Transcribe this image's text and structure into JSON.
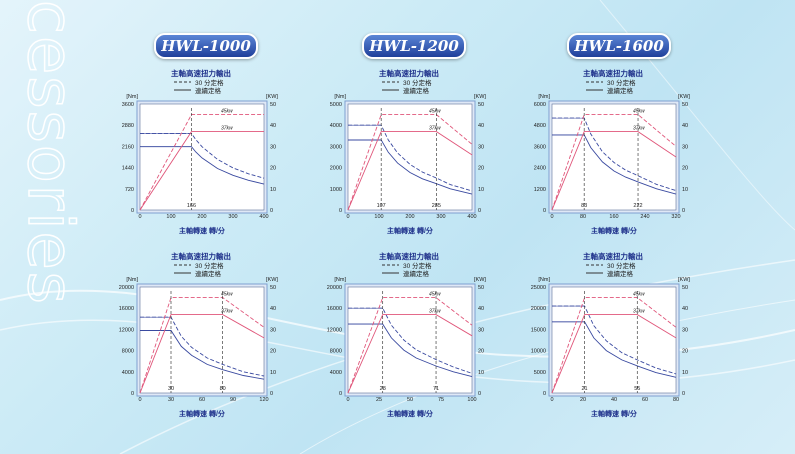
{
  "sidebar_text": "cessories",
  "models": [
    "HWL-1000",
    "HWL-1200",
    "HWL-1600"
  ],
  "colors": {
    "power_line": "#e0567a",
    "torque_line": "#3a4aa0",
    "plot_bg": "#ffffff",
    "frame": "#7f9fd0"
  },
  "chart_data": [
    {
      "type": "line",
      "title": "主軸高速扭力輸出",
      "legend": [
        "30 分定格",
        "連續定格"
      ],
      "xlabel": "主軸轉速 轉/分",
      "ylabel": "[Nm]",
      "ylabel_right": "[KW]",
      "xlim": [
        0,
        400
      ],
      "ylim": [
        0,
        3600
      ],
      "y2lim": [
        0,
        50
      ],
      "x_ticks": [
        "0",
        "100",
        "200",
        "300",
        "400"
      ],
      "y_ticks": [
        "0",
        "720",
        "1440",
        "2160",
        "2880",
        "3600"
      ],
      "y2_ticks": [
        "0",
        "10",
        "20",
        "30",
        "40",
        "50"
      ],
      "annotations": [
        "45kw",
        "37kw"
      ],
      "marked_x": [
        {
          "value": 166,
          "label": "166"
        }
      ],
      "series": [
        {
          "name": "30 分定格",
          "style": "dashed",
          "axis": "left",
          "x": [
            0,
            166,
            180,
            200,
            250,
            300,
            350,
            400
          ],
          "y": [
            2600,
            2600,
            2390,
            2150,
            1720,
            1430,
            1230,
            1080
          ]
        },
        {
          "name": "連續定格",
          "style": "solid",
          "axis": "left",
          "x": [
            0,
            166,
            180,
            200,
            250,
            300,
            350,
            400
          ],
          "y": [
            2150,
            2150,
            1970,
            1770,
            1410,
            1180,
            1010,
            880
          ]
        },
        {
          "name": "30 分定格",
          "style": "dashed",
          "axis": "right",
          "x": [
            0,
            166,
            400
          ],
          "y": [
            0,
            45,
            45
          ]
        },
        {
          "name": "連續定格",
          "style": "solid",
          "axis": "right",
          "x": [
            0,
            166,
            400
          ],
          "y": [
            0,
            37,
            37
          ]
        }
      ]
    },
    {
      "type": "line",
      "title": "主軸高速扭力輸出",
      "legend": [
        "30 分定格",
        "連續定格"
      ],
      "xlabel": "主軸轉速 轉/分",
      "ylabel": "[Nm]",
      "ylabel_right": "[KW]",
      "xlim": [
        0,
        400
      ],
      "ylim": [
        0,
        5000
      ],
      "y2lim": [
        0,
        50
      ],
      "x_ticks": [
        "0",
        "100",
        "200",
        "300",
        "400"
      ],
      "y_ticks": [
        "0",
        "1000",
        "2000",
        "3000",
        "4000",
        "5000"
      ],
      "y2_ticks": [
        "0",
        "10",
        "20",
        "30",
        "40",
        "50"
      ],
      "annotations": [
        "45kw",
        "37kw"
      ],
      "marked_x": [
        {
          "value": 107,
          "label": "107"
        },
        {
          "value": 285,
          "label": "285"
        }
      ],
      "series": [
        {
          "name": "30 分定格",
          "style": "dashed",
          "axis": "left",
          "x": [
            0,
            107,
            130,
            160,
            200,
            240,
            285,
            330,
            400
          ],
          "y": [
            4000,
            4000,
            3300,
            2690,
            2150,
            1790,
            1510,
            1200,
            900
          ]
        },
        {
          "name": "連續定格",
          "style": "solid",
          "axis": "left",
          "x": [
            0,
            107,
            130,
            160,
            200,
            240,
            285,
            330,
            400
          ],
          "y": [
            3300,
            3300,
            2720,
            2210,
            1770,
            1470,
            1240,
            1000,
            750
          ]
        },
        {
          "name": "30 分定格",
          "style": "dashed",
          "axis": "right",
          "x": [
            0,
            107,
            285,
            400
          ],
          "y": [
            0,
            45,
            45,
            31
          ]
        },
        {
          "name": "連續定格",
          "style": "solid",
          "axis": "right",
          "x": [
            0,
            107,
            285,
            400
          ],
          "y": [
            0,
            37,
            37,
            26
          ]
        }
      ]
    },
    {
      "type": "line",
      "title": "主軸高速扭力輸出",
      "legend": [
        "30 分定格",
        "連續定格"
      ],
      "xlabel": "主軸轉速 轉/分",
      "ylabel": "[Nm]",
      "ylabel_right": "[KW]",
      "xlim": [
        0,
        320
      ],
      "ylim": [
        0,
        6000
      ],
      "y2lim": [
        0,
        50
      ],
      "x_ticks": [
        "0",
        "80",
        "160",
        "240",
        "320"
      ],
      "y_ticks": [
        "0",
        "1200",
        "2400",
        "3600",
        "4800",
        "6000"
      ],
      "y2_ticks": [
        "0",
        "10",
        "20",
        "30",
        "40",
        "50"
      ],
      "annotations": [
        "45kw",
        "37kw"
      ],
      "marked_x": [
        {
          "value": 83,
          "label": "83"
        },
        {
          "value": 222,
          "label": "222"
        }
      ],
      "series": [
        {
          "name": "30 分定格",
          "style": "dashed",
          "axis": "left",
          "x": [
            0,
            83,
            100,
            130,
            160,
            190,
            222,
            270,
            320
          ],
          "y": [
            5200,
            5200,
            4300,
            3300,
            2690,
            2260,
            1940,
            1450,
            1100
          ]
        },
        {
          "name": "連續定格",
          "style": "solid",
          "axis": "left",
          "x": [
            0,
            83,
            100,
            130,
            160,
            190,
            222,
            270,
            320
          ],
          "y": [
            4250,
            4250,
            3530,
            2720,
            2210,
            1860,
            1590,
            1200,
            900
          ]
        },
        {
          "name": "30 分定格",
          "style": "dashed",
          "axis": "right",
          "x": [
            0,
            83,
            222,
            320
          ],
          "y": [
            0,
            45,
            45,
            30
          ]
        },
        {
          "name": "連續定格",
          "style": "solid",
          "axis": "right",
          "x": [
            0,
            83,
            222,
            320
          ],
          "y": [
            0,
            37,
            37,
            25
          ]
        }
      ]
    },
    {
      "type": "line",
      "title": "主軸高速扭力輸出",
      "legend": [
        "30 分定格",
        "連續定格"
      ],
      "xlabel": "主軸轉速 轉/分",
      "ylabel": "[Nm]",
      "ylabel_right": "[KW]",
      "xlim": [
        0,
        120
      ],
      "ylim": [
        0,
        20000
      ],
      "y2lim": [
        0,
        50
      ],
      "x_ticks": [
        "0",
        "30",
        "60",
        "90",
        "120"
      ],
      "y_ticks": [
        "0",
        "4000",
        "8000",
        "12000",
        "16000",
        "20000"
      ],
      "y2_ticks": [
        "0",
        "10",
        "20",
        "30",
        "40",
        "50"
      ],
      "annotations": [
        "45kw",
        "37kw"
      ],
      "marked_x": [
        {
          "value": 30,
          "label": "30"
        },
        {
          "value": 80,
          "label": "80"
        }
      ],
      "series": [
        {
          "name": "30 分定格",
          "style": "dashed",
          "axis": "left",
          "x": [
            0,
            30,
            40,
            50,
            65,
            80,
            100,
            120
          ],
          "y": [
            14300,
            14300,
            10700,
            8600,
            6600,
            5400,
            4000,
            3200
          ]
        },
        {
          "name": "連續定格",
          "style": "solid",
          "axis": "left",
          "x": [
            0,
            30,
            40,
            50,
            65,
            80,
            100,
            120
          ],
          "y": [
            11800,
            11800,
            8800,
            7100,
            5400,
            4400,
            3300,
            2600
          ]
        },
        {
          "name": "30 分定格",
          "style": "dashed",
          "axis": "right",
          "x": [
            0,
            30,
            80,
            120
          ],
          "y": [
            0,
            45,
            45,
            31
          ]
        },
        {
          "name": "連續定格",
          "style": "solid",
          "axis": "right",
          "x": [
            0,
            30,
            80,
            120
          ],
          "y": [
            0,
            37,
            37,
            26
          ]
        }
      ]
    },
    {
      "type": "line",
      "title": "主軸高速扭力輸出",
      "legend": [
        "30 分定格",
        "連續定格"
      ],
      "xlabel": "主軸轉速 轉/分",
      "ylabel": "[Nm]",
      "ylabel_right": "[KW]",
      "xlim": [
        0,
        100
      ],
      "ylim": [
        0,
        20000
      ],
      "y2lim": [
        0,
        50
      ],
      "x_ticks": [
        "0",
        "25",
        "50",
        "75",
        "100"
      ],
      "y_ticks": [
        "0",
        "4000",
        "8000",
        "12000",
        "16000",
        "20000"
      ],
      "y2_ticks": [
        "0",
        "10",
        "20",
        "30",
        "40",
        "50"
      ],
      "annotations": [
        "45kw",
        "37kw"
      ],
      "marked_x": [
        {
          "value": 28,
          "label": "28"
        },
        {
          "value": 71,
          "label": "71"
        }
      ],
      "series": [
        {
          "name": "30 分定格",
          "style": "dashed",
          "axis": "left",
          "x": [
            0,
            28,
            35,
            45,
            55,
            71,
            85,
            100
          ],
          "y": [
            16000,
            16000,
            12800,
            10000,
            8150,
            6300,
            4900,
            3700
          ]
        },
        {
          "name": "連續定格",
          "style": "solid",
          "axis": "left",
          "x": [
            0,
            28,
            35,
            45,
            55,
            71,
            85,
            100
          ],
          "y": [
            13000,
            13000,
            10400,
            8100,
            6600,
            5100,
            4000,
            3100
          ]
        },
        {
          "name": "30 分定格",
          "style": "dashed",
          "axis": "right",
          "x": [
            0,
            28,
            71,
            100
          ],
          "y": [
            0,
            45,
            45,
            32
          ]
        },
        {
          "name": "連續定格",
          "style": "solid",
          "axis": "right",
          "x": [
            0,
            28,
            71,
            100
          ],
          "y": [
            0,
            37,
            37,
            27
          ]
        }
      ]
    },
    {
      "type": "line",
      "title": "主軸高速扭力輸出",
      "legend": [
        "30 分定格",
        "連續定格"
      ],
      "xlabel": "主軸轉速 轉/分",
      "ylabel": "[Nm]",
      "ylabel_right": "[KW]",
      "xlim": [
        0,
        80
      ],
      "ylim": [
        0,
        25000
      ],
      "y2lim": [
        0,
        50
      ],
      "x_ticks": [
        "0",
        "20",
        "40",
        "60",
        "80"
      ],
      "y_ticks": [
        "0",
        "5000",
        "10000",
        "15000",
        "20000",
        "25000"
      ],
      "y2_ticks": [
        "0",
        "10",
        "20",
        "30",
        "40",
        "50"
      ],
      "annotations": [
        "45kw",
        "37kw"
      ],
      "marked_x": [
        {
          "value": 21,
          "label": "21"
        },
        {
          "value": 55,
          "label": "55"
        }
      ],
      "series": [
        {
          "name": "30 分定格",
          "style": "dashed",
          "axis": "left",
          "x": [
            0,
            21,
            27,
            35,
            45,
            55,
            67,
            80
          ],
          "y": [
            20500,
            20500,
            15900,
            12300,
            9500,
            7800,
            5900,
            4500
          ]
        },
        {
          "name": "連續定格",
          "style": "solid",
          "axis": "left",
          "x": [
            0,
            21,
            27,
            35,
            45,
            55,
            67,
            80
          ],
          "y": [
            16800,
            16800,
            13000,
            10000,
            7800,
            6400,
            4800,
            3700
          ]
        },
        {
          "name": "30 分定格",
          "style": "dashed",
          "axis": "right",
          "x": [
            0,
            21,
            55,
            80
          ],
          "y": [
            0,
            45,
            45,
            31
          ]
        },
        {
          "name": "連續定格",
          "style": "solid",
          "axis": "right",
          "x": [
            0,
            21,
            55,
            80
          ],
          "y": [
            0,
            37,
            37,
            26
          ]
        }
      ]
    }
  ]
}
